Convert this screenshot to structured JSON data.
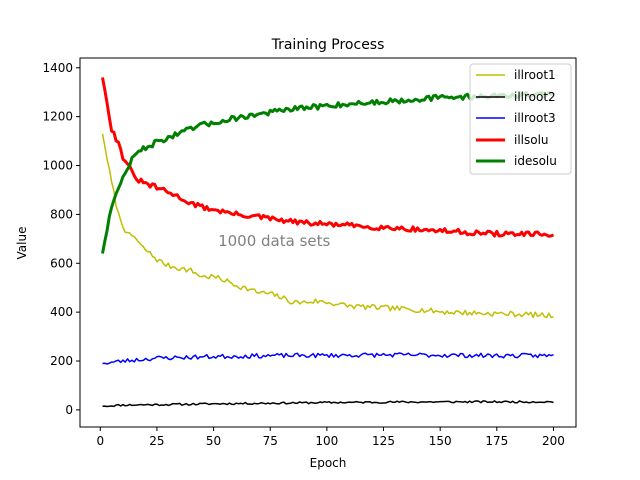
{
  "chart_data": {
    "type": "line",
    "title": "Training Process",
    "xlabel": "Epoch",
    "ylabel": "Value",
    "xlim": [
      -8.95,
      209.95
    ],
    "ylim": [
      -70,
      1440
    ],
    "xticks": [
      0,
      25,
      50,
      75,
      100,
      125,
      150,
      175,
      200
    ],
    "yticks": [
      0,
      200,
      400,
      600,
      800,
      1000,
      1200,
      1400
    ],
    "grid": false,
    "legend_position": "top-right",
    "annotation": {
      "text": "1000 data sets",
      "x": 52,
      "y": 670
    },
    "x": {
      "start": 1,
      "end": 200,
      "step": 1
    },
    "series": [
      {
        "name": "illroot1",
        "color": "#bfbf00",
        "width": 1.5,
        "anchors": [
          [
            1,
            1130
          ],
          [
            3,
            1030
          ],
          [
            5,
            930
          ],
          [
            8,
            800
          ],
          [
            12,
            715
          ],
          [
            15,
            710
          ],
          [
            18,
            670
          ],
          [
            22,
            640
          ],
          [
            25,
            615
          ],
          [
            30,
            590
          ],
          [
            35,
            580
          ],
          [
            40,
            570
          ],
          [
            45,
            545
          ],
          [
            50,
            545
          ],
          [
            55,
            530
          ],
          [
            60,
            510
          ],
          [
            65,
            495
          ],
          [
            70,
            480
          ],
          [
            75,
            475
          ],
          [
            80,
            460
          ],
          [
            85,
            440
          ],
          [
            90,
            440
          ],
          [
            95,
            445
          ],
          [
            100,
            440
          ],
          [
            110,
            425
          ],
          [
            120,
            420
          ],
          [
            130,
            415
          ],
          [
            140,
            410
          ],
          [
            150,
            402
          ],
          [
            160,
            398
          ],
          [
            170,
            395
          ],
          [
            180,
            393
          ],
          [
            190,
            390
          ],
          [
            200,
            385
          ]
        ],
        "noise": 11,
        "seed": 7
      },
      {
        "name": "illroot2",
        "color": "#000000",
        "width": 1.5,
        "anchors": [
          [
            1,
            15
          ],
          [
            10,
            20
          ],
          [
            30,
            22
          ],
          [
            50,
            25
          ],
          [
            80,
            28
          ],
          [
            100,
            30
          ],
          [
            130,
            32
          ],
          [
            160,
            33
          ],
          [
            200,
            33
          ]
        ],
        "noise": 4,
        "seed": 11
      },
      {
        "name": "illroot3",
        "color": "#0000ff",
        "width": 1.5,
        "anchors": [
          [
            1,
            190
          ],
          [
            10,
            200
          ],
          [
            25,
            212
          ],
          [
            50,
            218
          ],
          [
            75,
            222
          ],
          [
            100,
            223
          ],
          [
            125,
            225
          ],
          [
            150,
            224
          ],
          [
            175,
            222
          ],
          [
            200,
            222
          ]
        ],
        "noise": 9,
        "seed": 23
      },
      {
        "name": "illsolu",
        "color": "#ff0000",
        "width": 3,
        "anchors": [
          [
            1,
            1360
          ],
          [
            3,
            1260
          ],
          [
            5,
            1150
          ],
          [
            8,
            1090
          ],
          [
            10,
            1035
          ],
          [
            12,
            1010
          ],
          [
            15,
            950
          ],
          [
            20,
            925
          ],
          [
            25,
            910
          ],
          [
            30,
            890
          ],
          [
            35,
            870
          ],
          [
            40,
            845
          ],
          [
            45,
            830
          ],
          [
            50,
            820
          ],
          [
            55,
            810
          ],
          [
            60,
            800
          ],
          [
            70,
            790
          ],
          [
            80,
            775
          ],
          [
            90,
            765
          ],
          [
            100,
            760
          ],
          [
            110,
            755
          ],
          [
            120,
            748
          ],
          [
            130,
            745
          ],
          [
            140,
            738
          ],
          [
            150,
            733
          ],
          [
            160,
            728
          ],
          [
            170,
            722
          ],
          [
            180,
            720
          ],
          [
            190,
            718
          ],
          [
            200,
            718
          ]
        ],
        "noise": 10,
        "seed": 31
      },
      {
        "name": "idesolu",
        "color": "#008000",
        "width": 3,
        "anchors": [
          [
            1,
            640
          ],
          [
            3,
            740
          ],
          [
            5,
            840
          ],
          [
            8,
            900
          ],
          [
            10,
            950
          ],
          [
            12,
            990
          ],
          [
            15,
            1040
          ],
          [
            20,
            1075
          ],
          [
            25,
            1095
          ],
          [
            30,
            1115
          ],
          [
            35,
            1130
          ],
          [
            40,
            1150
          ],
          [
            45,
            1165
          ],
          [
            50,
            1175
          ],
          [
            55,
            1185
          ],
          [
            60,
            1195
          ],
          [
            70,
            1210
          ],
          [
            80,
            1225
          ],
          [
            90,
            1235
          ],
          [
            100,
            1245
          ],
          [
            110,
            1252
          ],
          [
            120,
            1258
          ],
          [
            130,
            1265
          ],
          [
            140,
            1272
          ],
          [
            150,
            1278
          ],
          [
            160,
            1281
          ],
          [
            170,
            1284
          ],
          [
            180,
            1287
          ],
          [
            190,
            1289
          ],
          [
            200,
            1290
          ]
        ],
        "noise": 11,
        "seed": 47
      }
    ]
  }
}
